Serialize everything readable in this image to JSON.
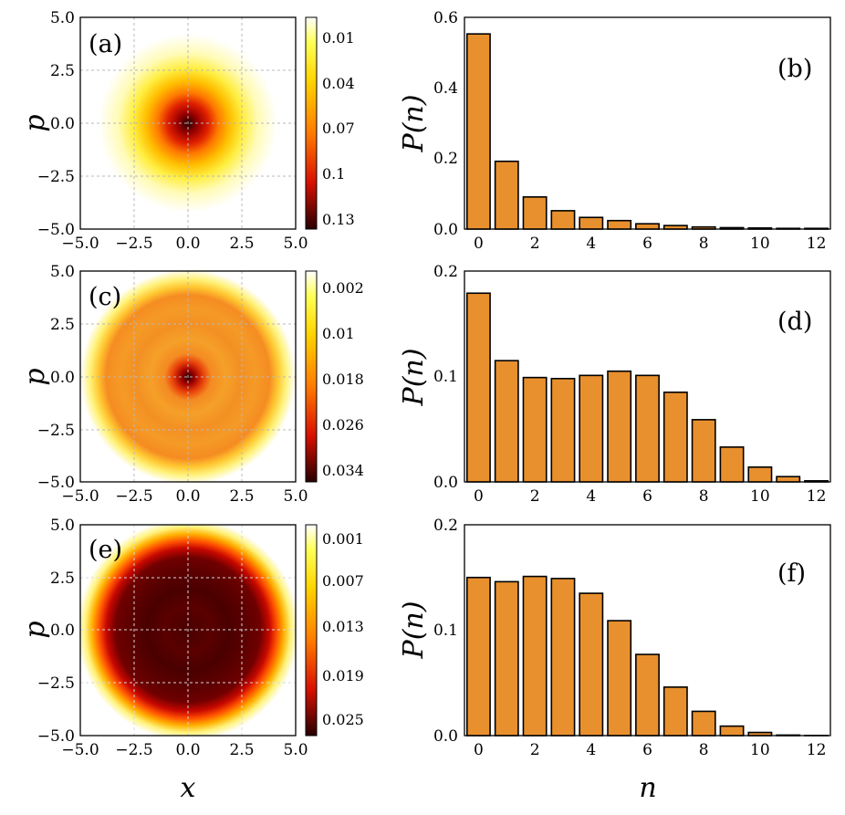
{
  "chart_data": [
    {
      "panel": "(a)",
      "type": "heatmap",
      "xlabel": "",
      "ylabel": "p",
      "xlim": [
        -5.0,
        5.0
      ],
      "ylim": [
        -5.0,
        5.0
      ],
      "xticks": [
        "−5.0",
        "−2.5",
        "0.0",
        "2.5",
        "5.0"
      ],
      "yticks": [
        "5.0",
        "2.5",
        "0.0",
        "−2.5",
        "−5.0"
      ],
      "colorbar_ticks": [
        "0.01",
        "0.04",
        "0.07",
        "0.1",
        "0.13"
      ],
      "colorbar_range": [
        0.0,
        0.14
      ],
      "grid": true
    },
    {
      "panel": "(b)",
      "type": "bar",
      "xlabel": "",
      "ylabel": "P(n)",
      "categories": [
        0,
        1,
        2,
        3,
        4,
        5,
        6,
        7,
        8,
        9,
        10,
        11,
        12
      ],
      "values": [
        0.553,
        0.192,
        0.091,
        0.052,
        0.033,
        0.024,
        0.015,
        0.01,
        0.006,
        0.004,
        0.003,
        0.002,
        0.002
      ],
      "xticks": [
        "0",
        "2",
        "4",
        "6",
        "8",
        "10",
        "12"
      ],
      "yticks": [
        "0.6",
        "0.4",
        "0.2",
        "0.0"
      ],
      "ylim": [
        0.0,
        0.6
      ]
    },
    {
      "panel": "(c)",
      "type": "heatmap",
      "xlabel": "",
      "ylabel": "p",
      "xlim": [
        -5.0,
        5.0
      ],
      "ylim": [
        -5.0,
        5.0
      ],
      "xticks": [
        "−5.0",
        "−2.5",
        "0.0",
        "2.5",
        "5.0"
      ],
      "yticks": [
        "5.0",
        "2.5",
        "0.0",
        "−2.5",
        "−5.0"
      ],
      "colorbar_ticks": [
        "0.002",
        "0.01",
        "0.018",
        "0.026",
        "0.034"
      ],
      "colorbar_range": [
        0.0,
        0.038
      ],
      "grid": true
    },
    {
      "panel": "(d)",
      "type": "bar",
      "xlabel": "",
      "ylabel": "P(n)",
      "categories": [
        0,
        1,
        2,
        3,
        4,
        5,
        6,
        7,
        8,
        9,
        10,
        11,
        12
      ],
      "values": [
        0.179,
        0.115,
        0.099,
        0.098,
        0.101,
        0.105,
        0.101,
        0.085,
        0.059,
        0.033,
        0.014,
        0.005,
        0.001
      ],
      "xticks": [
        "0",
        "2",
        "4",
        "6",
        "8",
        "10",
        "12"
      ],
      "yticks": [
        "0.2",
        "0.1",
        "0.0"
      ],
      "ylim": [
        0.0,
        0.2
      ]
    },
    {
      "panel": "(e)",
      "type": "heatmap",
      "xlabel": "x",
      "ylabel": "p",
      "xlim": [
        -5.0,
        5.0
      ],
      "ylim": [
        -5.0,
        5.0
      ],
      "xticks": [
        "−5.0",
        "−2.5",
        "0.0",
        "2.5",
        "5.0"
      ],
      "yticks": [
        "5.0",
        "2.5",
        "0.0",
        "−2.5",
        "−5.0"
      ],
      "colorbar_ticks": [
        "0.001",
        "0.007",
        "0.013",
        "0.019",
        "0.025"
      ],
      "colorbar_range": [
        0.0,
        0.028
      ],
      "grid": true
    },
    {
      "panel": "(f)",
      "type": "bar",
      "xlabel": "n",
      "ylabel": "P(n)",
      "categories": [
        0,
        1,
        2,
        3,
        4,
        5,
        6,
        7,
        8,
        9,
        10,
        11,
        12
      ],
      "values": [
        0.15,
        0.146,
        0.151,
        0.149,
        0.135,
        0.109,
        0.077,
        0.046,
        0.023,
        0.009,
        0.003,
        0.0005,
        0.0001
      ],
      "xticks": [
        "0",
        "2",
        "4",
        "6",
        "8",
        "10",
        "12"
      ],
      "yticks": [
        "0.2",
        "0.1",
        "0.0"
      ],
      "ylim": [
        0.0,
        0.2
      ]
    }
  ],
  "colors": {
    "bar_fill": "#e8902e",
    "bar_stroke": "#000000",
    "grid": "#b8b8b8"
  }
}
